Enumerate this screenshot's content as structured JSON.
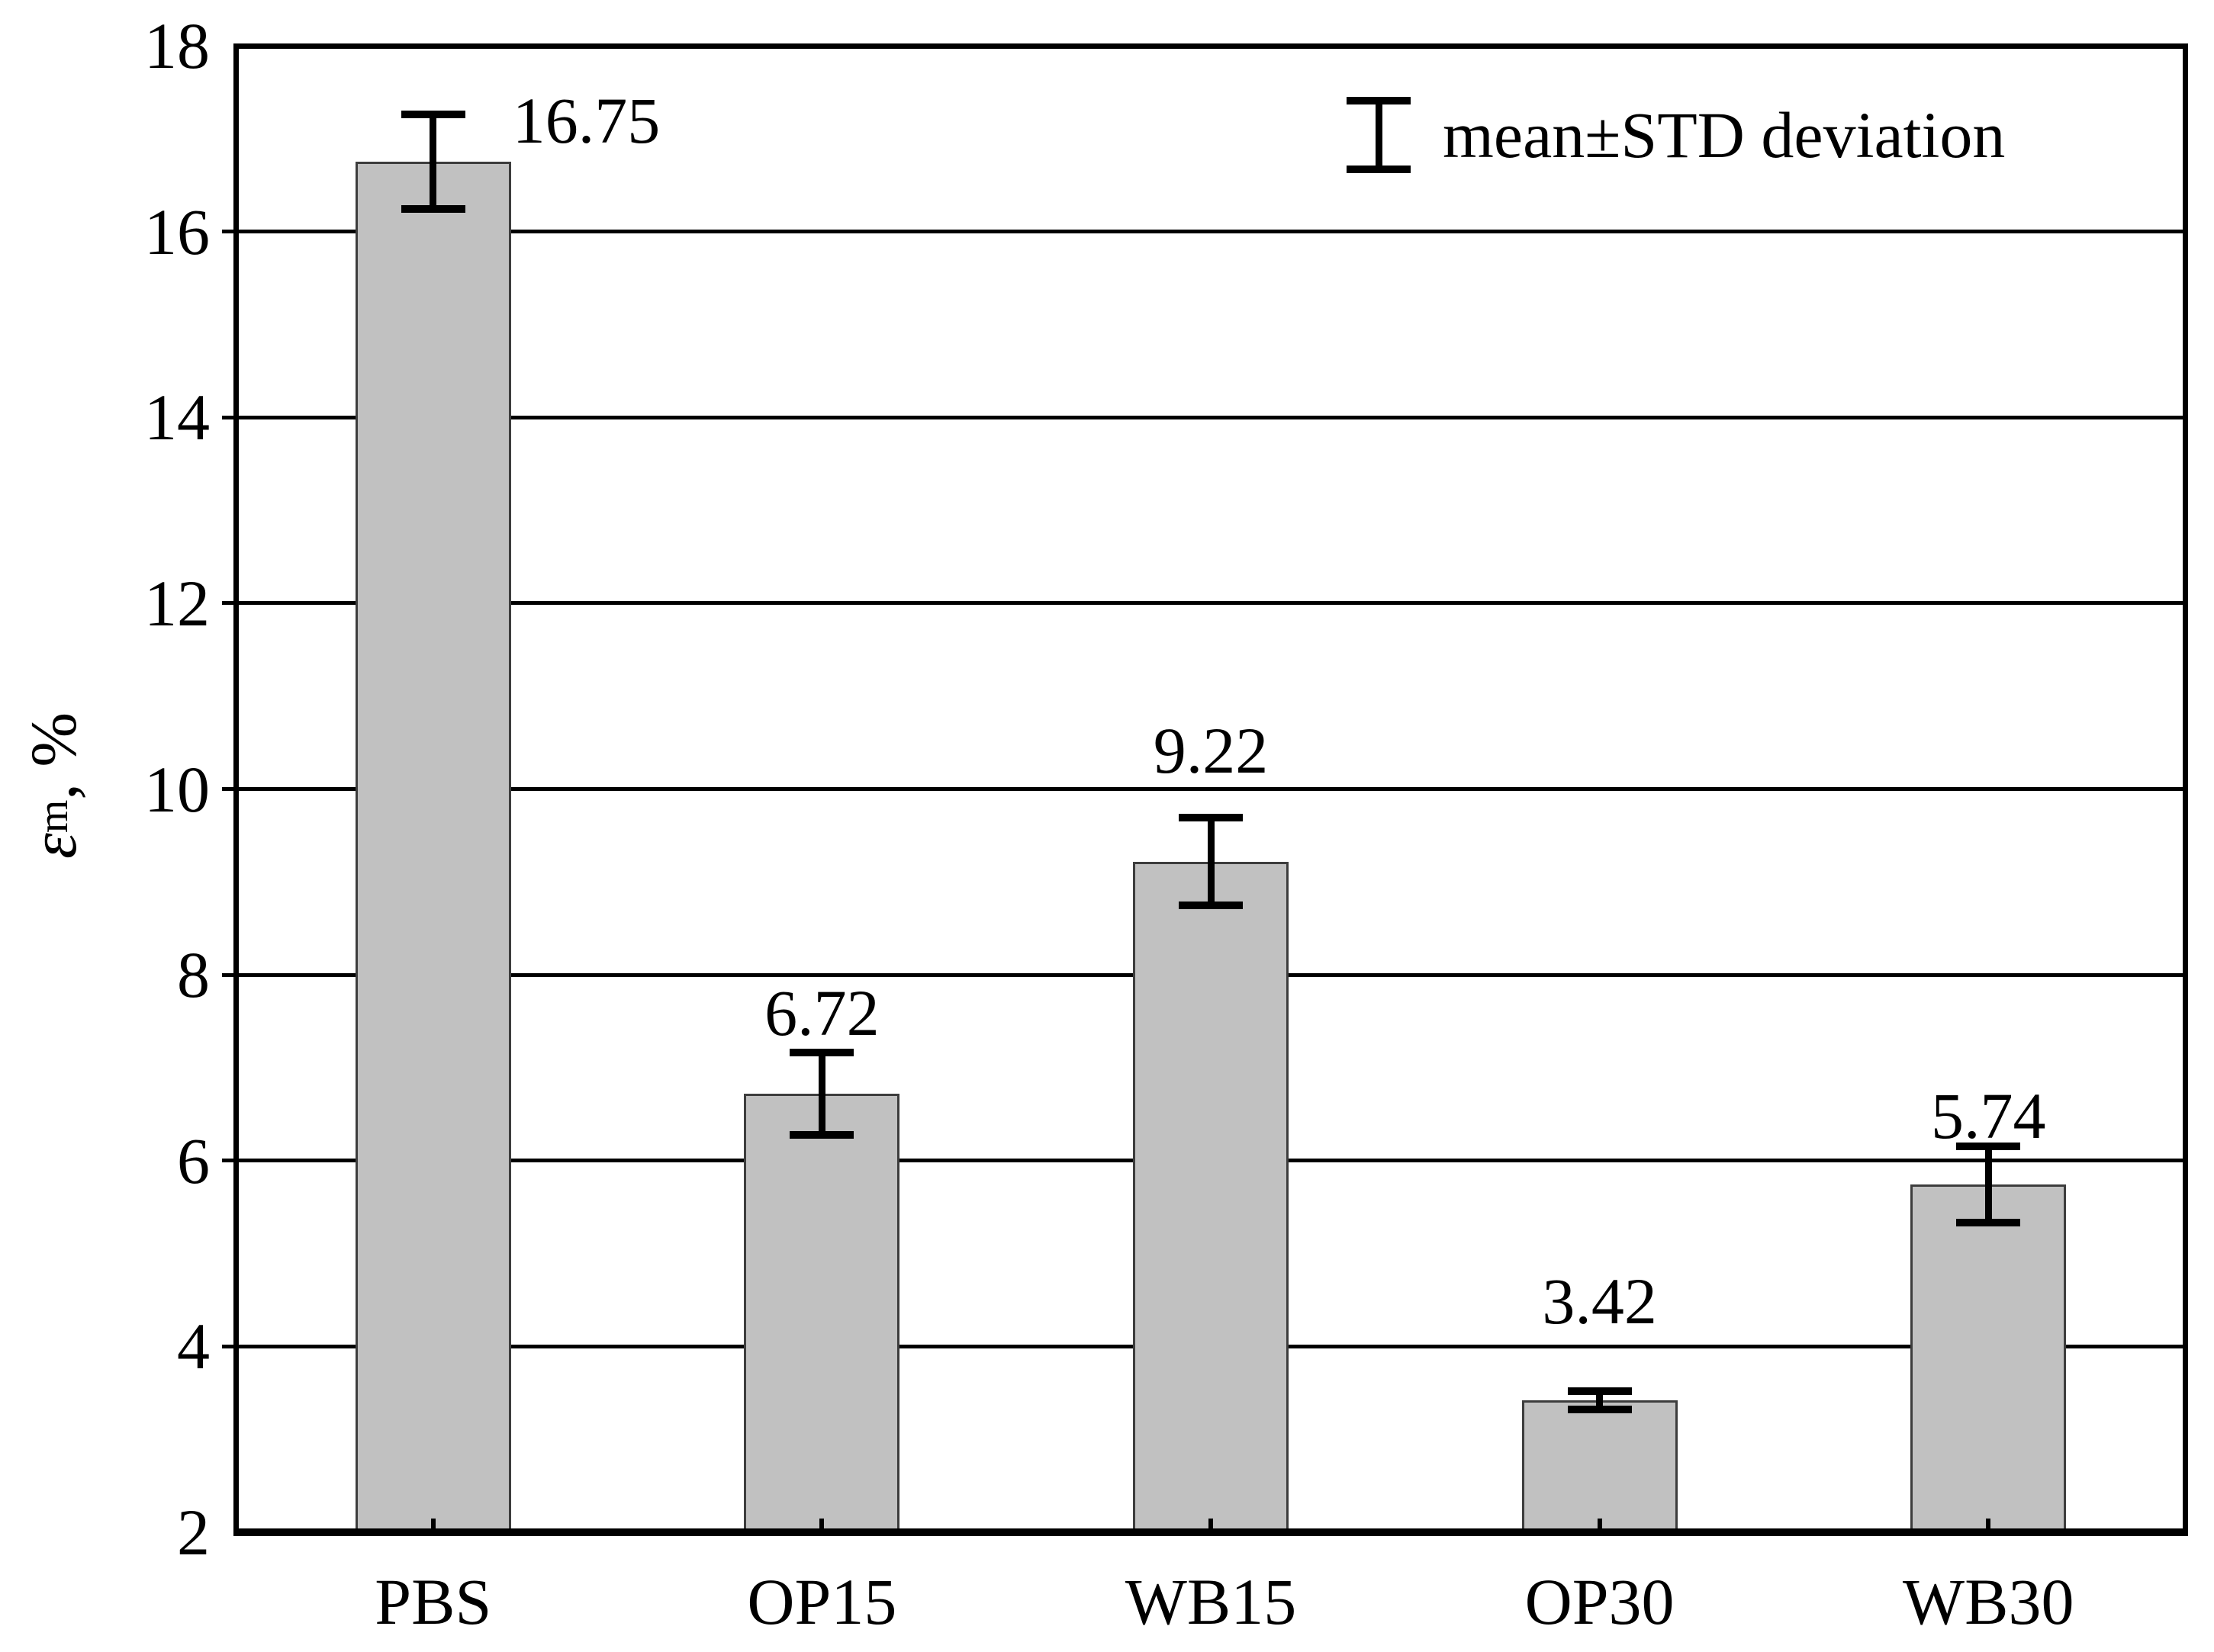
{
  "chart_data": {
    "type": "bar",
    "title": "",
    "categories": [
      "PBS",
      "OP15",
      "WB15",
      "OP30",
      "WB30"
    ],
    "values": [
      16.75,
      6.72,
      9.22,
      3.42,
      5.74
    ],
    "errors": [
      0.51,
      0.44,
      0.47,
      0.1,
      0.41
    ],
    "value_labels": [
      "16.75",
      "6.72",
      "9.22",
      "3.42",
      "5.74"
    ],
    "xlabel": "",
    "ylabel": {
      "epsilon": "ε",
      "subscript": "m",
      "suffix": ", %"
    },
    "ylim": [
      2,
      18
    ],
    "ytick_labels": [
      "2",
      "4",
      "6",
      "8",
      "10",
      "12",
      "14",
      "16",
      "18"
    ],
    "grid": "horizontal",
    "legend": {
      "label": "mean±STD deviation",
      "position": "top-right"
    },
    "colors": {
      "bar_fill": "#c1c1c1",
      "bar_border": "#3d3d3d",
      "line": "#000000",
      "background": "#ffffff"
    }
  }
}
